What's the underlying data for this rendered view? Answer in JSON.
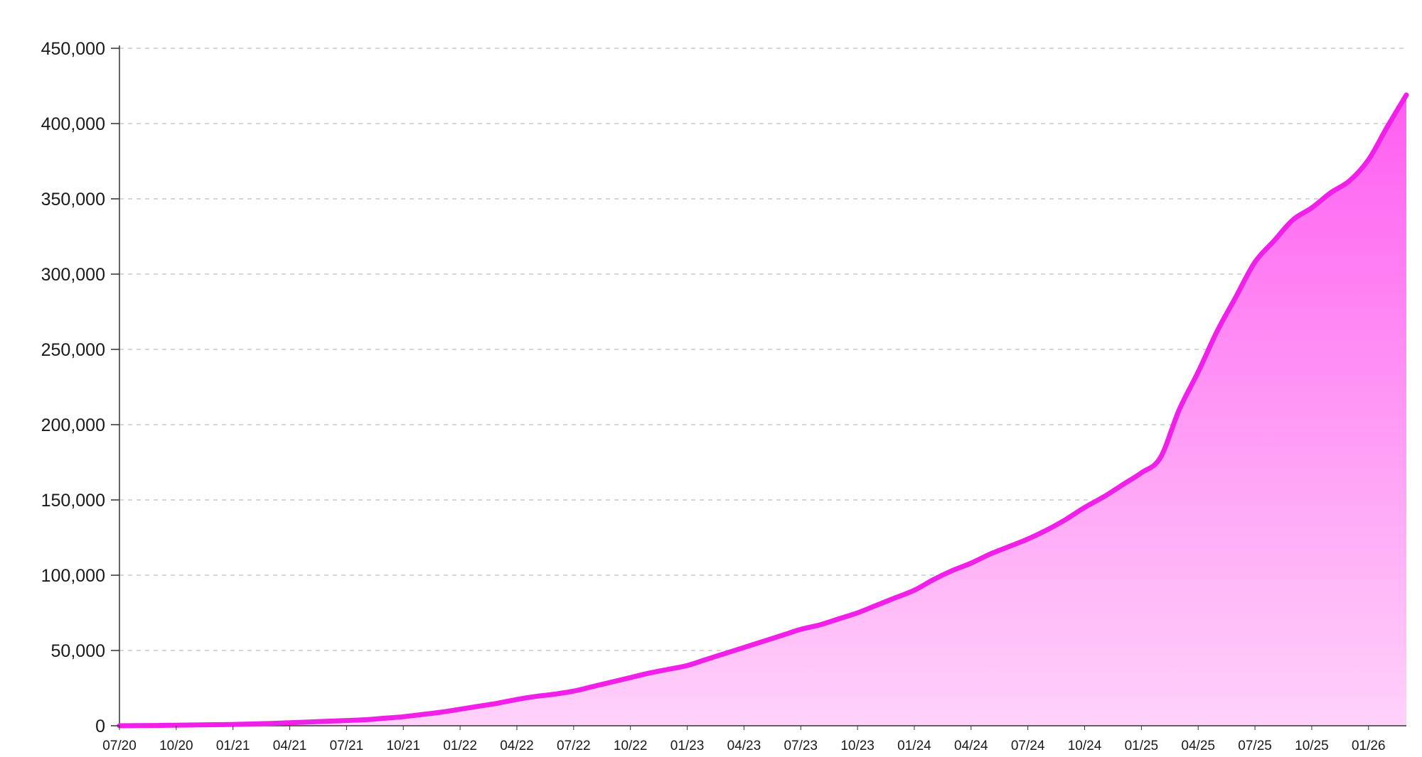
{
  "chart_data": {
    "type": "area",
    "title": "",
    "xlabel": "",
    "ylabel": "",
    "ylim": [
      0,
      450000
    ],
    "yticks": [
      {
        "value": 0,
        "label": "0"
      },
      {
        "value": 50000,
        "label": "50,000"
      },
      {
        "value": 100000,
        "label": "100,000"
      },
      {
        "value": 150000,
        "label": "150,000"
      },
      {
        "value": 200000,
        "label": "200,000"
      },
      {
        "value": 250000,
        "label": "250,000"
      },
      {
        "value": 300000,
        "label": "300,000"
      },
      {
        "value": 350000,
        "label": "350,000"
      },
      {
        "value": 400000,
        "label": "400,000"
      },
      {
        "value": 450000,
        "label": "450,000"
      }
    ],
    "xtick_labels": [
      "07/20",
      "10/20",
      "01/21",
      "04/21",
      "07/21",
      "10/21",
      "01/22",
      "04/22",
      "07/22",
      "10/22",
      "01/23",
      "04/23",
      "07/23",
      "10/23",
      "01/24",
      "04/24",
      "07/24",
      "10/24",
      "01/25",
      "04/25",
      "07/25",
      "10/25",
      "01/26"
    ],
    "grid": "horizontal-dashed",
    "legend": "none",
    "colors": {
      "line": "#f020e8",
      "fill_top": "#ff5ef0",
      "fill_bottom": "#ffd2fa",
      "grid": "#c8c8c8",
      "axis": "#333333"
    },
    "x": [
      "07/20",
      "08/20",
      "09/20",
      "10/20",
      "11/20",
      "12/20",
      "01/21",
      "02/21",
      "03/21",
      "04/21",
      "05/21",
      "06/21",
      "07/21",
      "08/21",
      "09/21",
      "10/21",
      "11/21",
      "12/21",
      "01/22",
      "02/22",
      "03/22",
      "04/22",
      "05/22",
      "06/22",
      "07/22",
      "08/22",
      "09/22",
      "10/22",
      "11/22",
      "12/22",
      "01/23",
      "02/23",
      "03/23",
      "04/23",
      "05/23",
      "06/23",
      "07/23",
      "08/23",
      "09/23",
      "10/23",
      "11/23",
      "12/23",
      "01/24",
      "02/24",
      "03/24",
      "04/24",
      "05/24",
      "06/24",
      "07/24",
      "08/24",
      "09/24",
      "10/24",
      "11/24",
      "12/24",
      "01/25",
      "02/25",
      "03/25",
      "04/25",
      "05/25",
      "06/25",
      "07/25",
      "08/25",
      "09/25",
      "10/25",
      "11/25",
      "12/25",
      "01/26",
      "02/26",
      "03/26"
    ],
    "series": [
      {
        "values": [
          0,
          100,
          200,
          400,
          500,
          700,
          900,
          1200,
          1500,
          2000,
          2500,
          3000,
          3500,
          4000,
          5000,
          6000,
          7500,
          9000,
          11000,
          13000,
          15000,
          17500,
          19500,
          21000,
          23000,
          26000,
          29000,
          32000,
          35000,
          37500,
          40000,
          44000,
          48000,
          52000,
          56000,
          60000,
          64000,
          67000,
          71000,
          75000,
          80000,
          85000,
          90000,
          97000,
          103000,
          108000,
          114000,
          119000,
          124000,
          130000,
          137000,
          145000,
          152000,
          160000,
          168000,
          178000,
          210000,
          235000,
          262000,
          285000,
          308000,
          322000,
          336000,
          344000,
          354000,
          362000,
          376000,
          398000,
          419000
        ]
      }
    ]
  }
}
